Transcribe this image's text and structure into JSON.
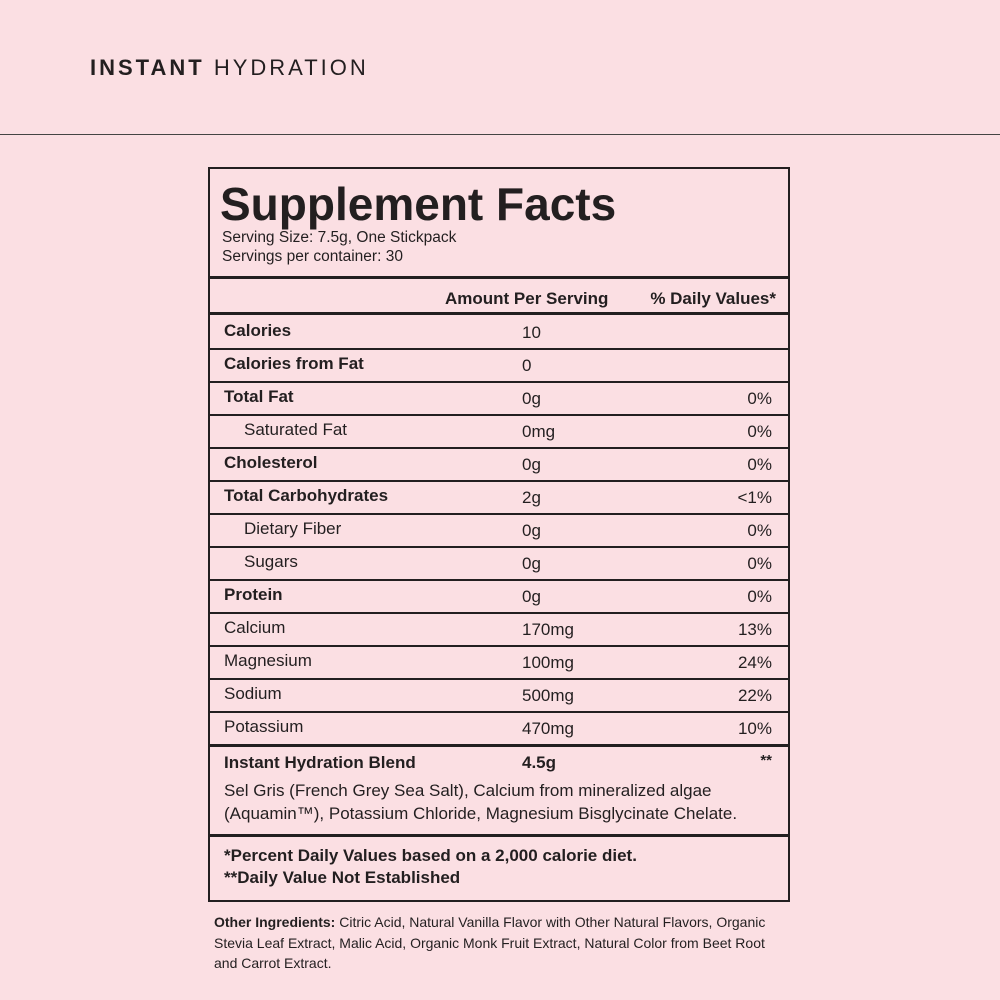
{
  "header": {
    "brand_bold": "INSTANT",
    "brand_light": "HYDRATION"
  },
  "label": {
    "title": "Supplement Facts",
    "serving_size": "Serving Size: 7.5g, One Stickpack",
    "servings": "Servings per container: 30",
    "columns": [
      "Amount Per Serving",
      "% Daily Values*"
    ],
    "rows": [
      {
        "name": "Calories",
        "amount": "10",
        "style": "bold"
      },
      {
        "name": "Calories from Fat",
        "amount": "0",
        "style": "bold"
      },
      {
        "name": "Total Fat",
        "amount": "0g",
        "dv": "0%",
        "style": "bold"
      },
      {
        "name": "Saturated Fat",
        "amount": "0mg",
        "dv": "0%",
        "style": "indent"
      },
      {
        "name": "Cholesterol",
        "amount": "0g",
        "dv": "0%",
        "style": "bold"
      },
      {
        "name": "Total Carbohydrates",
        "amount": "2g",
        "dv": "<1%",
        "style": "bold"
      },
      {
        "name": "Dietary Fiber",
        "amount": "0g",
        "dv": "0%",
        "style": "indent"
      },
      {
        "name": "Sugars",
        "amount": "0g",
        "dv": "0%",
        "style": "indent"
      },
      {
        "name": "Protein",
        "amount": "0g",
        "dv": "0%",
        "style": "bold"
      },
      {
        "name": "Calcium",
        "amount": "170mg",
        "dv": "13%",
        "style": "plain"
      },
      {
        "name": "Magnesium",
        "amount": "100mg",
        "dv": "24%",
        "style": "plain"
      },
      {
        "name": "Sodium",
        "amount": "500mg",
        "dv": "22%",
        "style": "plain"
      },
      {
        "name": "Potassium",
        "amount": "470mg",
        "dv": "10%",
        "style": "plain"
      }
    ],
    "blend": {
      "name": "Instant Hydration Blend",
      "amount": "4.5g",
      "dv": "**",
      "description": "Sel Gris (French Grey Sea Salt), Calcium from mineralized algae (Aquamin™), Potassium Chloride, Magnesium Bisglycinate Chelate."
    },
    "footnotes": [
      "*Percent Daily Values based on a 2,000 calorie diet.",
      "**Daily Value Not Established"
    ]
  },
  "other_ingredients": {
    "label": "Other Ingredients:",
    "text": "Citric Acid, Natural Vanilla Flavor with Other Natural Flavors, Organic Stevia Leaf Extract, Malic Acid, Organic Monk Fruit Extract, Natural Color from Beet Root and Carrot Extract."
  }
}
